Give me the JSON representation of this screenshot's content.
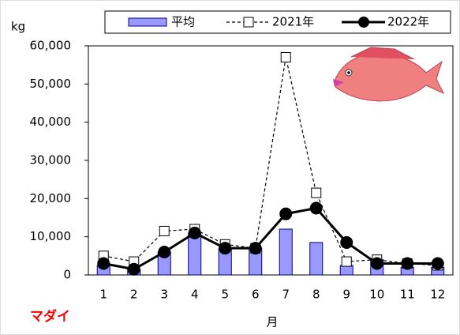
{
  "chart_data": {
    "type": "bar-line",
    "y_label": "kg",
    "x_label": "月",
    "annotation": "マダイ",
    "categories": [
      "1",
      "2",
      "3",
      "4",
      "5",
      "6",
      "7",
      "8",
      "9",
      "10",
      "11",
      "12"
    ],
    "series": [
      {
        "name": "平均",
        "type": "bar",
        "color": "#9999ff",
        "values": [
          2500,
          1500,
          6000,
          11000,
          7000,
          7000,
          12000,
          8500,
          2500,
          4000,
          2000,
          2000
        ]
      },
      {
        "name": "2021年",
        "type": "line",
        "style": "dashed",
        "marker": "square",
        "color": "#000000",
        "values": [
          5000,
          3500,
          11500,
          12000,
          8000,
          7000,
          57000,
          21500,
          3500,
          4000,
          3000,
          2500
        ]
      },
      {
        "name": "2022年",
        "type": "line",
        "style": "solid",
        "marker": "circle",
        "color": "#000000",
        "values": [
          3000,
          1500,
          6000,
          11000,
          7000,
          7000,
          16000,
          17500,
          8500,
          3000,
          3000,
          3000
        ]
      }
    ],
    "ylim": [
      0,
      60000
    ],
    "yticks": [
      0,
      {
        "value": 10000,
        "label": "10,000"
      },
      {
        "value": 20000,
        "label": "20,000"
      },
      {
        "value": 30000,
        "label": "30,000"
      },
      {
        "value": 40000,
        "label": "40,000"
      },
      {
        "value": 50000,
        "label": "50,000"
      },
      {
        "value": 60000,
        "label": "60,000"
      }
    ],
    "grid": false
  }
}
